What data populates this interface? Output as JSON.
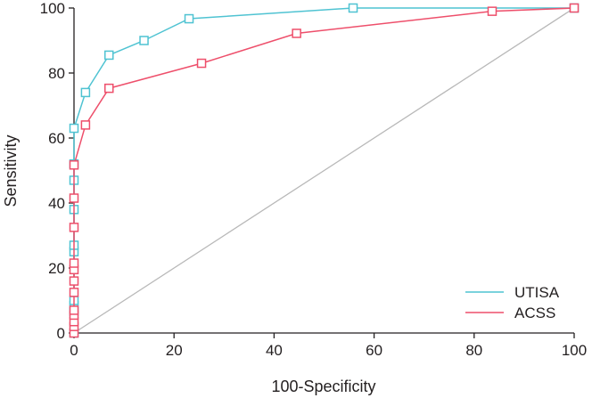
{
  "chart_data": {
    "type": "line",
    "title": "",
    "xlabel": "100-Specificity",
    "ylabel": "Sensitivity",
    "xlim": [
      0,
      100
    ],
    "ylim": [
      0,
      100
    ],
    "xticks": [
      "0",
      "20",
      "40",
      "60",
      "80",
      "100"
    ],
    "yticks": [
      "0",
      "20",
      "40",
      "60",
      "80",
      "100"
    ],
    "grid": false,
    "legend_position": "bottom-right",
    "reference_line": {
      "x": [
        0,
        100
      ],
      "y": [
        0,
        100
      ],
      "color": "#b8b8b8"
    },
    "series": [
      {
        "name": "UTISA",
        "color": "#4fc3d2",
        "x": [
          0,
          0,
          0,
          0,
          0,
          0,
          0,
          0,
          0,
          0,
          2.3,
          7,
          14,
          23,
          55.8,
          100
        ],
        "y": [
          0,
          6.5,
          8.5,
          10,
          25,
          27,
          38,
          47,
          52,
          63,
          74,
          85.5,
          90,
          96.7,
          100,
          100
        ]
      },
      {
        "name": "ACSS",
        "color": "#ee4f6b",
        "x": [
          0,
          0,
          0,
          0,
          0,
          0,
          0,
          0,
          0,
          0,
          0,
          0,
          2.3,
          7,
          25.5,
          44.5,
          83.6,
          100
        ],
        "y": [
          0,
          2,
          3.5,
          5.5,
          7,
          12.5,
          16,
          19.5,
          21.5,
          32.5,
          41.5,
          51.7,
          64,
          75.3,
          83,
          92.2,
          99,
          100
        ]
      }
    ]
  }
}
